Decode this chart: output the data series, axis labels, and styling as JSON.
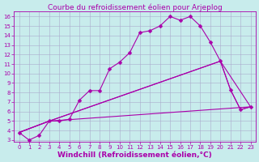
{
  "title": "Courbe du refroidissement éolien pour Arjeplog",
  "xlabel": "Windchill (Refroidissement éolien,°C)",
  "bg_color": "#c8ecec",
  "line_color": "#aa00aa",
  "grid_color": "#aaaacc",
  "xlim": [
    -0.5,
    23.5
  ],
  "ylim": [
    2.8,
    16.5
  ],
  "xticks": [
    0,
    1,
    2,
    3,
    4,
    5,
    6,
    7,
    8,
    9,
    10,
    11,
    12,
    13,
    14,
    15,
    16,
    17,
    18,
    19,
    20,
    21,
    22,
    23
  ],
  "yticks": [
    3,
    4,
    5,
    6,
    7,
    8,
    9,
    10,
    11,
    12,
    13,
    14,
    15,
    16
  ],
  "line1_x": [
    0,
    1,
    2,
    3,
    4,
    5,
    6,
    7,
    8,
    9,
    10,
    11,
    12,
    13,
    14,
    15,
    16,
    17,
    18,
    19,
    20,
    21,
    22,
    23
  ],
  "line1_y": [
    3.8,
    3.0,
    3.5,
    5.0,
    5.0,
    5.2,
    7.2,
    8.2,
    8.2,
    10.5,
    11.2,
    12.2,
    14.3,
    14.5,
    15.0,
    16.0,
    15.6,
    16.0,
    15.0,
    13.3,
    11.3,
    8.3,
    6.2,
    6.5
  ],
  "line2_x": [
    0,
    3,
    20,
    21,
    22,
    23
  ],
  "line2_y": [
    3.8,
    5.0,
    11.3,
    8.3,
    6.2,
    6.5
  ],
  "line3_x": [
    0,
    3,
    20,
    23
  ],
  "line3_y": [
    3.8,
    5.0,
    11.3,
    6.5
  ],
  "line4_x": [
    0,
    3,
    23
  ],
  "line4_y": [
    3.8,
    5.0,
    6.5
  ],
  "markersize": 2.5,
  "linewidth": 0.8,
  "title_fontsize": 6.5,
  "tick_fontsize": 5.0,
  "xlabel_fontsize": 6.5
}
